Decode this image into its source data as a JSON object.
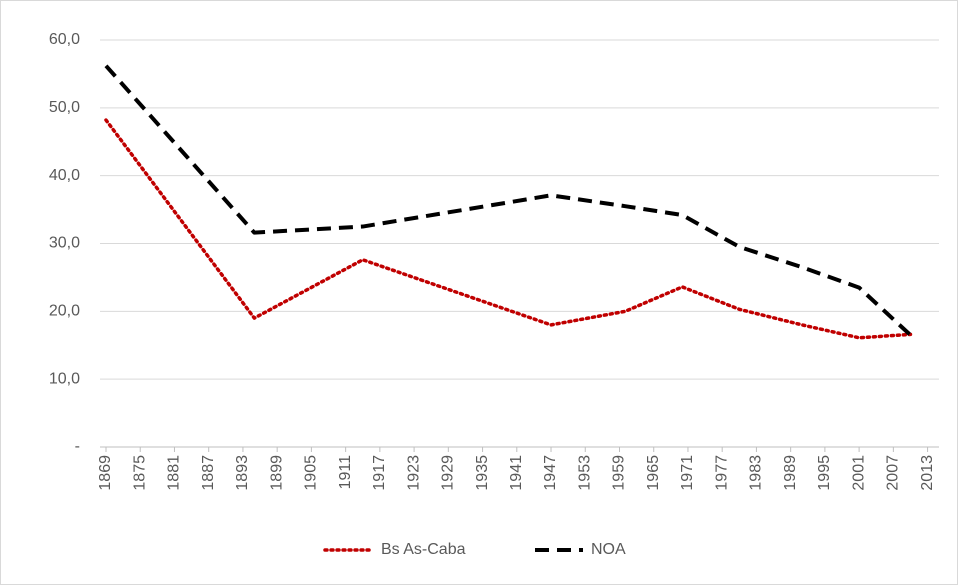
{
  "chart_data": {
    "type": "line",
    "x": [
      1869,
      1895,
      1914,
      1947,
      1960,
      1970,
      1980,
      1991,
      2001,
      2010
    ],
    "series": [
      {
        "name": "Bs As-Caba",
        "color": "#c00000",
        "dash": "dotted",
        "values": [
          48.2,
          19.0,
          27.6,
          18.0,
          20.0,
          23.6,
          20.3,
          18.0,
          16.1,
          16.6
        ]
      },
      {
        "name": "NOA",
        "color": "#000000",
        "dash": "dashed",
        "values": [
          56.2,
          31.6,
          32.5,
          37.1,
          35.5,
          34.2,
          29.5,
          26.5,
          23.5,
          16.5
        ]
      }
    ],
    "xlim": [
      1869,
      2015
    ],
    "xticks": [
      1869,
      1875,
      1881,
      1887,
      1893,
      1899,
      1905,
      1911,
      1917,
      1923,
      1929,
      1935,
      1941,
      1947,
      1953,
      1959,
      1965,
      1971,
      1977,
      1983,
      1989,
      1995,
      2001,
      2007,
      2013
    ],
    "ylim": [
      0,
      60
    ],
    "yticks": [
      {
        "value": 0,
        "label": "-"
      },
      {
        "value": 10,
        "label": "10,0"
      },
      {
        "value": 20,
        "label": "20,0"
      },
      {
        "value": 30,
        "label": "30,0"
      },
      {
        "value": 40,
        "label": "40,0"
      },
      {
        "value": 50,
        "label": "50,0"
      },
      {
        "value": 60,
        "label": "60,0"
      }
    ],
    "grid": true,
    "legend": "bottom"
  }
}
